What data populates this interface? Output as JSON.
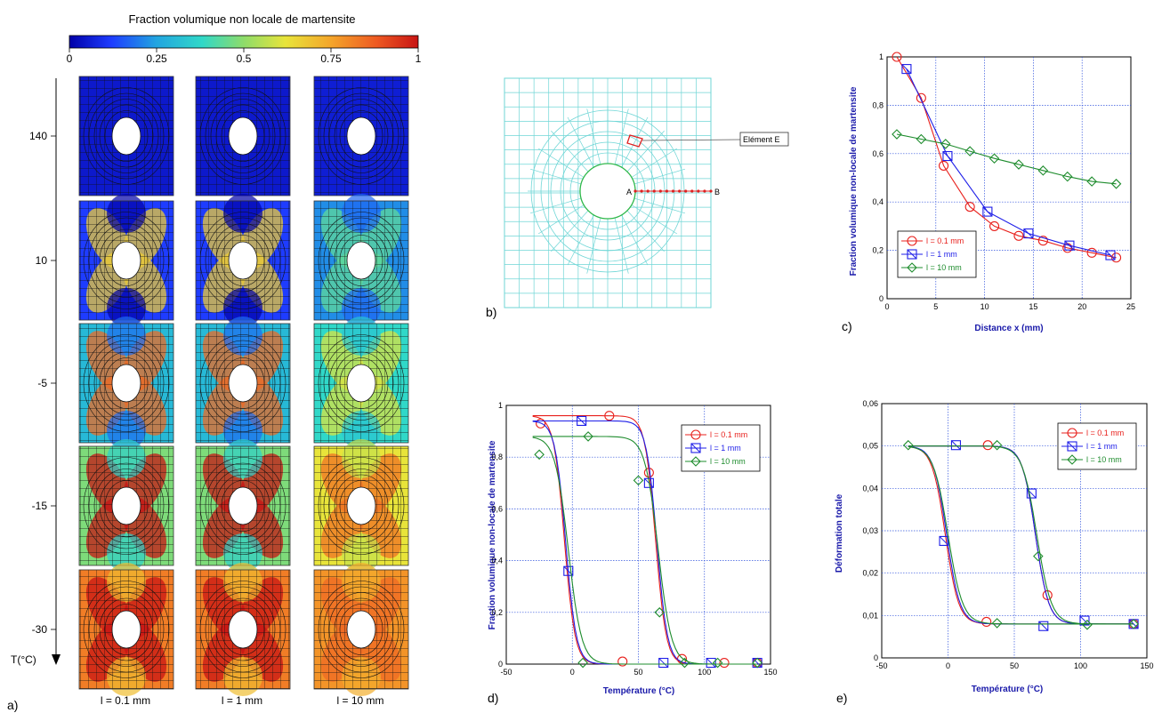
{
  "panel_a": {
    "colorbar": {
      "title": "Fraction volumique non locale de martensite",
      "ticks": [
        "0",
        "0.25",
        "0.5",
        "0.75",
        "1"
      ],
      "tick_values": [
        0,
        0.25,
        0.5,
        0.75,
        1
      ]
    },
    "temp_axis_label": "T(°C)",
    "temperatures": [
      "140",
      "10",
      "-5",
      "-15",
      "-30"
    ],
    "columns": [
      "l = 0.1 mm",
      "l = 1 mm",
      "l = 10 mm"
    ],
    "background_fraction": [
      [
        0.05,
        0.05,
        0.06
      ],
      [
        0.12,
        0.12,
        0.22
      ],
      [
        0.3,
        0.3,
        0.38
      ],
      [
        0.48,
        0.48,
        0.62
      ],
      [
        0.82,
        0.82,
        0.78
      ]
    ],
    "label": "a)"
  },
  "panel_b": {
    "label": "b)",
    "element_label": "Elément E",
    "point_a": "A",
    "point_b": "B"
  },
  "chart_data": [
    {
      "id": "c",
      "type": "line",
      "label": "c)",
      "xlabel": "Distance x (mm)",
      "ylabel": "Fraction volumique non-locale de martensite",
      "xlim": [
        0,
        25
      ],
      "ylim": [
        0,
        1
      ],
      "xticks": [
        "0",
        "5",
        "10",
        "15",
        "20",
        "25"
      ],
      "yticks": [
        "0",
        "0,2",
        "0,4",
        "0,6",
        "0,8",
        "1"
      ],
      "legend_position": "bottom-left",
      "series": [
        {
          "name": "l = 0.1 mm",
          "color": "#e8201c",
          "marker": "circle",
          "x": [
            1.0,
            3.5,
            5.8,
            8.5,
            11.0,
            13.5,
            16.0,
            18.5,
            21.0,
            23.5
          ],
          "y": [
            1.0,
            0.83,
            0.55,
            0.38,
            0.3,
            0.26,
            0.24,
            0.21,
            0.19,
            0.17
          ]
        },
        {
          "name": "l = 1 mm",
          "color": "#1e1ee8",
          "marker": "square",
          "x": [
            2.0,
            6.2,
            10.3,
            14.5,
            18.7,
            22.9
          ],
          "y": [
            0.95,
            0.59,
            0.36,
            0.27,
            0.22,
            0.18
          ]
        },
        {
          "name": "l = 10 mm",
          "color": "#1e8c2d",
          "marker": "diamond",
          "x": [
            1.0,
            3.5,
            6.0,
            8.5,
            11.0,
            13.5,
            16.0,
            18.5,
            21.0,
            23.5
          ],
          "y": [
            0.68,
            0.66,
            0.64,
            0.61,
            0.58,
            0.555,
            0.53,
            0.505,
            0.485,
            0.475
          ]
        }
      ]
    },
    {
      "id": "d",
      "type": "line",
      "label": "d)",
      "xlabel": "Température (°C)",
      "ylabel": "Fraction volumique non-locale de martensite",
      "xlim": [
        -50,
        150
      ],
      "ylim": [
        0,
        1
      ],
      "xticks": [
        "-50",
        "0",
        "50",
        "100",
        "150"
      ],
      "yticks": [
        "0",
        "0,2",
        "0,4",
        "0,6",
        "0,8",
        "1"
      ],
      "legend_position": "top-right",
      "series": [
        {
          "name": "l = 0.1 mm",
          "color": "#e8201c",
          "marker": "circle",
          "x": [
            -30,
            -20,
            -10,
            -5,
            0,
            5,
            10,
            20,
            30,
            40,
            50,
            55,
            60,
            65,
            70,
            80,
            100,
            120,
            140
          ],
          "y": [
            0.96,
            0.96,
            0.95,
            0.7,
            0.3,
            0.08,
            0.03,
            0.02,
            0.96,
            0.96,
            0.95,
            0.9,
            0.72,
            0.3,
            0.08,
            0.02,
            0.01,
            0.005,
            0.005
          ],
          "markers_x": [
            -24,
            28,
            38,
            58,
            83,
            115,
            140
          ],
          "markers_y": [
            0.93,
            0.96,
            0.01,
            0.74,
            0.02,
            0.005,
            0.005
          ]
        },
        {
          "name": "l = 1 mm",
          "color": "#1e1ee8",
          "marker": "square",
          "markers_x": [
            7,
            58,
            -3,
            69,
            105,
            140
          ],
          "markers_y": [
            0.94,
            0.7,
            0.36,
            0.005,
            0.005,
            0.005
          ]
        },
        {
          "name": "l = 10 mm",
          "color": "#1e8c2d",
          "marker": "diamond",
          "markers_x": [
            -25,
            12,
            50,
            66,
            8,
            85,
            110,
            140
          ],
          "markers_y": [
            0.81,
            0.88,
            0.71,
            0.2,
            0.005,
            0.005,
            0.005,
            0.005
          ]
        }
      ]
    },
    {
      "id": "e",
      "type": "line",
      "label": "e)",
      "xlabel": "Température (°C)",
      "ylabel": "Déformation totale",
      "xlim": [
        -50,
        150
      ],
      "ylim": [
        0,
        0.06
      ],
      "xticks": [
        "-50",
        "0",
        "50",
        "100",
        "150"
      ],
      "yticks": [
        "0",
        "0,01",
        "0,02",
        "0,03",
        "0,04",
        "0,05",
        "0,06"
      ],
      "legend_position": "top-right",
      "series": [
        {
          "name": "l = 0.1 mm",
          "color": "#e8201c",
          "marker": "circle",
          "markers_x": [
            30,
            75,
            29,
            140
          ],
          "markers_y": [
            0.0502,
            0.0148,
            0.0085,
            0.008
          ]
        },
        {
          "name": "l = 1 mm",
          "color": "#1e1ee8",
          "marker": "square",
          "markers_x": [
            6,
            63,
            -3,
            72,
            103,
            140
          ],
          "markers_y": [
            0.0502,
            0.0388,
            0.0276,
            0.0075,
            0.0088,
            0.008
          ]
        },
        {
          "name": "l = 10 mm",
          "color": "#1e8c2d",
          "marker": "diamond",
          "markers_x": [
            -30,
            37,
            68,
            37,
            105,
            140
          ],
          "markers_y": [
            0.0502,
            0.0502,
            0.024,
            0.0082,
            0.0078,
            0.008
          ]
        }
      ]
    }
  ]
}
